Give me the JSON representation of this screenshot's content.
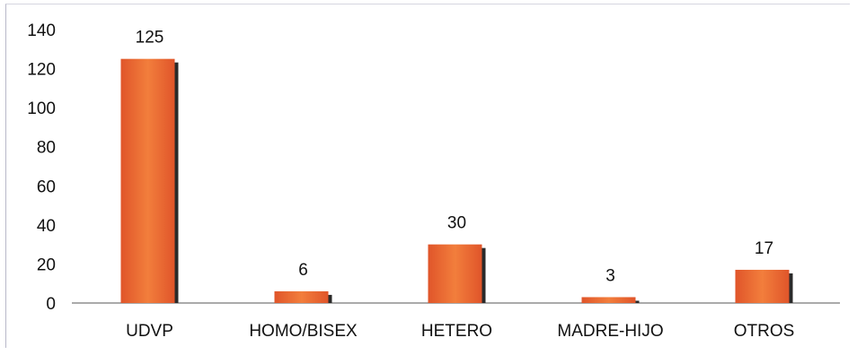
{
  "chart_data": {
    "type": "bar",
    "title": "",
    "xlabel": "",
    "ylabel": "",
    "categories": [
      "UDVP",
      "HOMO/BISEX",
      "HETERO",
      "MADRE-HIJO",
      "OTROS"
    ],
    "values": [
      125,
      6,
      30,
      3,
      17
    ],
    "ylim": [
      0,
      140
    ],
    "yticks": [
      0,
      20,
      40,
      60,
      80,
      100,
      120,
      140
    ],
    "grid": false,
    "legend": "none",
    "data_labels": true,
    "colors": {
      "bar": "#e8622c",
      "bar_highlight": "#f07a3a",
      "bar_shadow": "#2a2a2a",
      "axis": "#555555"
    }
  }
}
